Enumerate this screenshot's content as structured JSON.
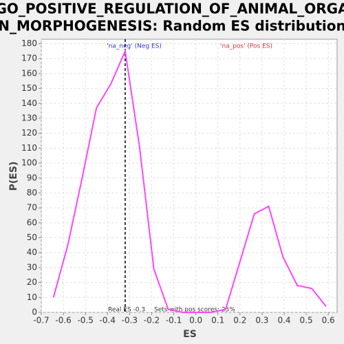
{
  "chart_data": {
    "type": "line",
    "title": [
      "GO_POSITIVE_REGULATION_OF_ANIMAL_ORGA",
      "N_MORPHOGENESIS: Random ES distribution"
    ],
    "x_label": "ES",
    "y_label": "P(ES)",
    "x": [
      -0.645,
      -0.58,
      -0.515,
      -0.45,
      -0.385,
      -0.32,
      -0.255,
      -0.19,
      -0.125,
      -0.06,
      0.005,
      0.07,
      0.135,
      0.2,
      0.265,
      0.33,
      0.395,
      0.46,
      0.525,
      0.59
    ],
    "series": [
      {
        "name": null,
        "color": "#ff44ff",
        "values": [
          10,
          45,
          90,
          137,
          153,
          175,
          111,
          29,
          2,
          0,
          0,
          0,
          2,
          34,
          66,
          71,
          37,
          18,
          16,
          4
        ]
      }
    ],
    "xlim": [
      -0.7,
      0.64
    ],
    "ylim": [
      0,
      183
    ],
    "xticks": [
      -0.7,
      -0.6,
      -0.5,
      -0.4,
      -0.3,
      -0.2,
      -0.1,
      {
        "value": 0,
        "label": "0.0"
      },
      0.1,
      0.2,
      0.3,
      0.4,
      0.5,
      0.6
    ],
    "yticks": [
      0,
      10,
      20,
      30,
      40,
      50,
      60,
      70,
      80,
      90,
      100,
      110,
      120,
      130,
      140,
      150,
      160,
      170,
      180
    ],
    "grid": true,
    "real_es_x": -0.32,
    "neg_label": "'na_neg' (Neg ES)",
    "pos_label": "'na_pos' (Pos ES)",
    "real_es_label": "Real ES -0.3",
    "pos_sets_label": "Sets with pos scores: 25%"
  }
}
